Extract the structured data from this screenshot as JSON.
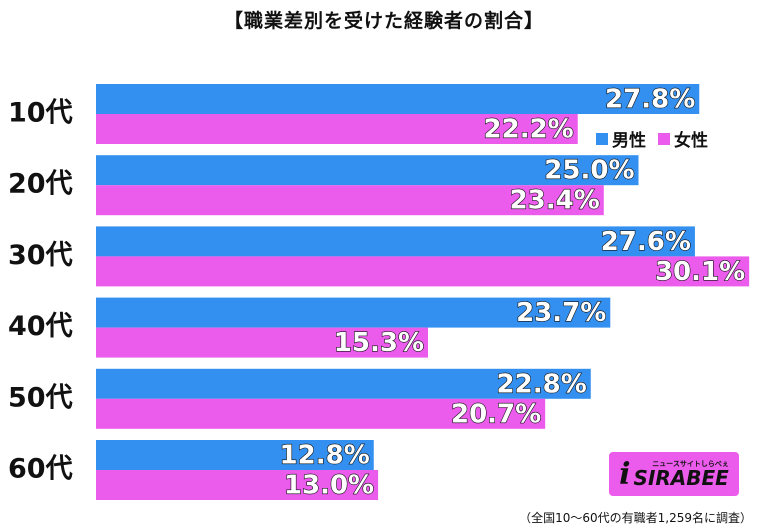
{
  "colors": {
    "male": "#3390f0",
    "female": "#ec5cec"
  },
  "chart_data": {
    "type": "bar",
    "orientation": "horizontal",
    "title": "【職業差別を受けた経験者の割合】",
    "categories": [
      "10代",
      "20代",
      "30代",
      "40代",
      "50代",
      "60代"
    ],
    "series": [
      {
        "name": "男性",
        "values": [
          27.8,
          25.0,
          27.6,
          23.7,
          22.8,
          12.8
        ]
      },
      {
        "name": "女性",
        "values": [
          22.2,
          23.4,
          30.1,
          15.3,
          20.7,
          13.0
        ]
      }
    ],
    "value_suffix": "%",
    "legend_position": "top-right",
    "grid": false
  },
  "note": "（全国10～60代の有職者1,259名に調査）",
  "logo": {
    "subtitle": "ニュースサイトしらべぇ",
    "name": "SIRABEE"
  }
}
